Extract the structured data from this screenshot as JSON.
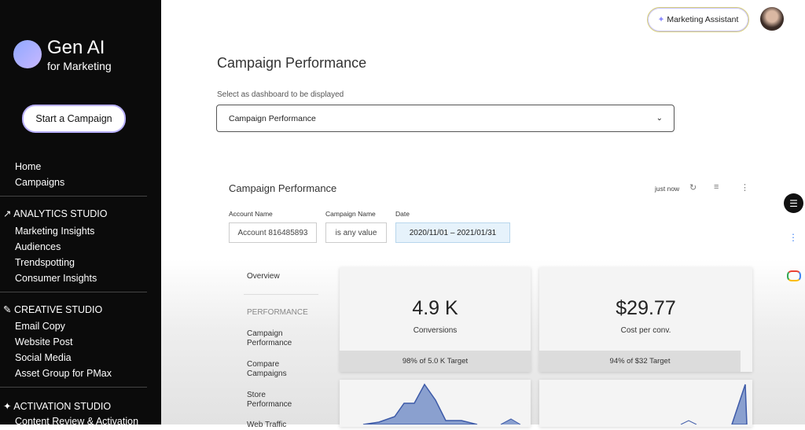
{
  "sidebar": {
    "logo": {
      "title": "Gen AI",
      "subtitle": "for Marketing"
    },
    "start_button": "Start a Campaign",
    "nav": [
      "Home",
      "Campaigns"
    ],
    "sections": [
      {
        "title": "ANALYTICS STUDIO",
        "items": [
          "Marketing Insights",
          "Audiences",
          "Trendspotting",
          "Consumer Insights"
        ]
      },
      {
        "title": "CREATIVE STUDIO",
        "items": [
          "Email Copy",
          "Website Post",
          "Social Media",
          "Asset Group for PMax"
        ]
      },
      {
        "title": "ACTIVATION STUDIO",
        "items": [
          "Content Review & Activation"
        ]
      }
    ]
  },
  "header": {
    "assistant_button": "Marketing Assistant"
  },
  "page": {
    "title": "Campaign Performance",
    "select_label": "Select as dashboard to be displayed",
    "select_value": "Campaign Performance"
  },
  "dashboard": {
    "title": "Campaign Performance",
    "refreshed": "just now",
    "filters": [
      {
        "label": "Account Name",
        "value": "Account 816485893"
      },
      {
        "label": "Campaign Name",
        "value": "is any value"
      },
      {
        "label": "Date",
        "value": "2020/11/01 – 2021/01/31"
      }
    ],
    "nav": {
      "overview": "Overview",
      "section": "PERFORMANCE",
      "items": [
        "Campaign Performance",
        "Compare Campaigns",
        "Store Performance",
        "Web Traffic"
      ]
    },
    "cards": [
      {
        "value": "4.9 K",
        "label": "Conversions",
        "target": "98% of 5.0 K Target"
      },
      {
        "value": "$29.77",
        "label": "Cost per conv.",
        "target": "94% of $32 Target"
      }
    ]
  }
}
